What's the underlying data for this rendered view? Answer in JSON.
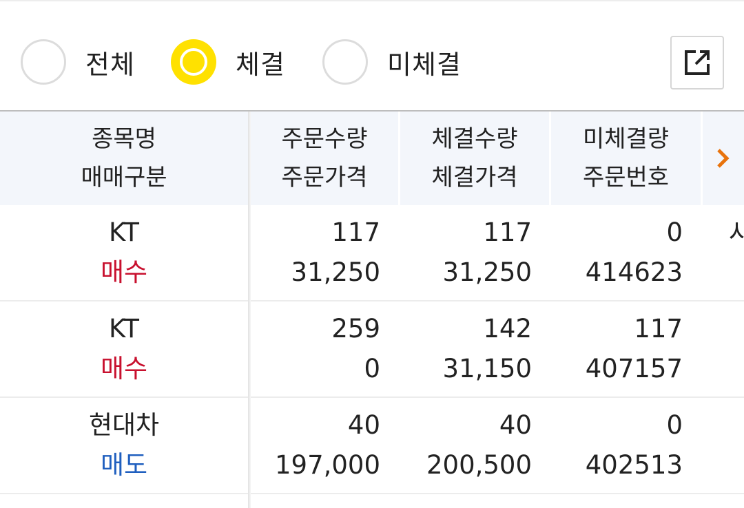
{
  "filters": {
    "options": [
      {
        "label": "전체",
        "checked": false
      },
      {
        "label": "체결",
        "checked": true
      },
      {
        "label": "미체결",
        "checked": false
      }
    ],
    "export_icon": "external-link-icon"
  },
  "table": {
    "headers": [
      {
        "line1": "종목명",
        "line2": "매매구분"
      },
      {
        "line1": "주문수량",
        "line2": "주문가격"
      },
      {
        "line1": "체결수량",
        "line2": "체결가격"
      },
      {
        "line1": "미체결량",
        "line2": "주문번호"
      }
    ],
    "more_icon": "chevron-right-icon",
    "rows": [
      {
        "name": "KT",
        "side": "매수",
        "side_type": "buy",
        "order_qty": "117",
        "order_price": "31,250",
        "exec_qty": "117",
        "exec_price": "31,250",
        "unfilled_qty": "0",
        "order_no": "414623",
        "peek": "사"
      },
      {
        "name": "KT",
        "side": "매수",
        "side_type": "buy",
        "order_qty": "259",
        "order_price": "0",
        "exec_qty": "142",
        "exec_price": "31,150",
        "unfilled_qty": "117",
        "order_no": "407157",
        "peek": ""
      },
      {
        "name": "현대차",
        "side": "매도",
        "side_type": "sell",
        "order_qty": "40",
        "order_price": "197,000",
        "exec_qty": "40",
        "exec_price": "200,500",
        "unfilled_qty": "0",
        "order_no": "402513",
        "peek": ""
      }
    ]
  },
  "colors": {
    "accent": "#ffe100",
    "buy": "#c8102e",
    "sell": "#1f5fbf",
    "arrow": "#e8730c"
  }
}
